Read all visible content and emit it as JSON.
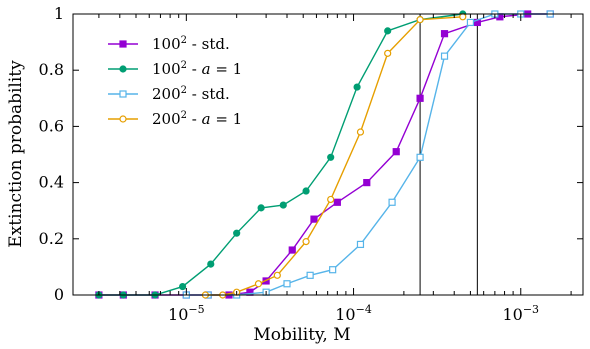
{
  "chart_data": {
    "type": "line",
    "xlabel": "Mobility, M",
    "ylabel": "Extinction probability",
    "x_scale": "log",
    "xlim": [
      2.1e-06,
      2.2e-06
    ],
    "ylim": [
      0,
      1
    ],
    "x_tick_values": [
      1e-05,
      0.0001,
      0.001
    ],
    "x_tick_labels": [
      "10^−5",
      "10^−4",
      "10^−3"
    ],
    "y_ticks": [
      "0",
      "0.2",
      "0.4",
      "0.6",
      "0.8",
      "1"
    ],
    "grid": false,
    "legend_position": "top-left",
    "vertical_lines": [
      0.00025,
      0.00055
    ],
    "series": [
      {
        "name": "100^2 - std.",
        "color": "#9400d3",
        "marker": "filled-square",
        "x": [
          3e-06,
          4.2e-06,
          6.5e-06,
          1e-05,
          1.35e-05,
          1.8e-05,
          2.4e-05,
          3e-05,
          4.3e-05,
          5.8e-05,
          8e-05,
          0.00012,
          0.00018,
          0.00025,
          0.00035,
          0.00055,
          0.00075,
          0.0011,
          0.0015
        ],
        "y": [
          0,
          0,
          0,
          0,
          0,
          0,
          0.01,
          0.05,
          0.16,
          0.27,
          0.33,
          0.4,
          0.51,
          0.7,
          0.93,
          0.97,
          0.99,
          1,
          1
        ]
      },
      {
        "name": "100^2 - a = 1",
        "color": "#009e73",
        "marker": "filled-circle",
        "x": [
          3e-06,
          4.2e-06,
          6.5e-06,
          9.5e-06,
          1.4e-05,
          2e-05,
          2.8e-05,
          3.8e-05,
          5.2e-05,
          7.3e-05,
          0.000105,
          0.00016,
          0.00025,
          0.00045
        ],
        "y": [
          0,
          0,
          0,
          0.03,
          0.11,
          0.22,
          0.31,
          0.32,
          0.37,
          0.49,
          0.74,
          0.94,
          0.98,
          1
        ]
      },
      {
        "name": "200^2 - std.",
        "color": "#56b4e9",
        "marker": "open-square",
        "x": [
          1e-05,
          1.35e-05,
          2e-05,
          3e-05,
          4e-05,
          5.5e-05,
          7.5e-05,
          0.00011,
          0.00017,
          0.00025,
          0.00035,
          0.0005,
          0.0007,
          0.001,
          0.0015
        ],
        "y": [
          0,
          0,
          0,
          0.01,
          0.04,
          0.07,
          0.09,
          0.18,
          0.33,
          0.49,
          0.85,
          0.97,
          1,
          1,
          1
        ]
      },
      {
        "name": "200^2 - a = 1",
        "color": "#e69f00",
        "marker": "open-circle",
        "x": [
          1.3e-05,
          1.65e-05,
          2e-05,
          2.7e-05,
          3.5e-05,
          5.2e-05,
          7.3e-05,
          0.00011,
          0.00016,
          0.00025,
          0.00045
        ],
        "y": [
          0,
          0,
          0.01,
          0.04,
          0.07,
          0.19,
          0.34,
          0.58,
          0.86,
          0.98,
          0.99
        ]
      }
    ]
  }
}
